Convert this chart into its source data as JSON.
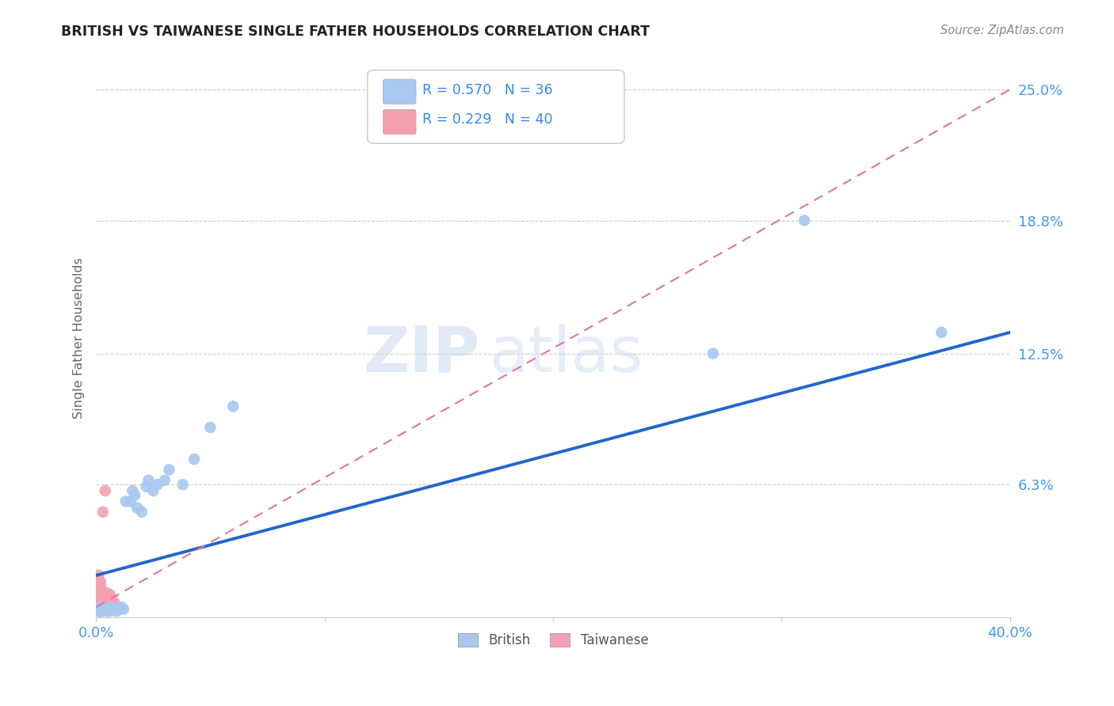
{
  "title": "BRITISH VS TAIWANESE SINGLE FATHER HOUSEHOLDS CORRELATION CHART",
  "source": "Source: ZipAtlas.com",
  "ylabel": "Single Father Households",
  "xlim": [
    0.0,
    0.4
  ],
  "ylim": [
    0.0,
    0.265
  ],
  "ytick_positions": [
    0.063,
    0.125,
    0.188,
    0.25
  ],
  "ytick_labels": [
    "6.3%",
    "12.5%",
    "18.8%",
    "25.0%"
  ],
  "british_color": "#a8c8f0",
  "taiwanese_color": "#f5a0b0",
  "british_line_color": "#2266cc",
  "taiwanese_line_color": "#dd7799",
  "watermark_zip": "ZIP",
  "watermark_atlas": "atlas",
  "legend_r_british": "R = 0.570",
  "legend_n_british": "N = 36",
  "legend_r_taiwanese": "R = 0.229",
  "legend_n_taiwanese": "N = 40",
  "british_x": [
    0.001,
    0.001,
    0.002,
    0.002,
    0.003,
    0.003,
    0.004,
    0.005,
    0.005,
    0.006,
    0.006,
    0.007,
    0.008,
    0.009,
    0.01,
    0.011,
    0.012,
    0.013,
    0.015,
    0.016,
    0.017,
    0.018,
    0.02,
    0.022,
    0.023,
    0.025,
    0.027,
    0.03,
    0.032,
    0.038,
    0.043,
    0.05,
    0.06,
    0.27,
    0.31,
    0.37
  ],
  "british_y": [
    0.003,
    0.004,
    0.003,
    0.005,
    0.003,
    0.004,
    0.004,
    0.003,
    0.004,
    0.003,
    0.005,
    0.004,
    0.004,
    0.003,
    0.004,
    0.005,
    0.004,
    0.055,
    0.055,
    0.06,
    0.058,
    0.052,
    0.05,
    0.062,
    0.065,
    0.06,
    0.063,
    0.065,
    0.07,
    0.063,
    0.075,
    0.09,
    0.1,
    0.125,
    0.188,
    0.135
  ],
  "taiwanese_x": [
    0.001,
    0.001,
    0.001,
    0.001,
    0.001,
    0.001,
    0.001,
    0.001,
    0.001,
    0.001,
    0.001,
    0.001,
    0.002,
    0.002,
    0.002,
    0.002,
    0.002,
    0.002,
    0.002,
    0.002,
    0.003,
    0.003,
    0.003,
    0.003,
    0.003,
    0.003,
    0.004,
    0.004,
    0.004,
    0.004,
    0.004,
    0.005,
    0.005,
    0.005,
    0.006,
    0.006,
    0.006,
    0.007,
    0.007,
    0.008
  ],
  "taiwanese_y": [
    0.003,
    0.004,
    0.005,
    0.006,
    0.007,
    0.008,
    0.01,
    0.012,
    0.014,
    0.016,
    0.018,
    0.02,
    0.003,
    0.005,
    0.007,
    0.009,
    0.011,
    0.013,
    0.015,
    0.017,
    0.004,
    0.006,
    0.008,
    0.01,
    0.012,
    0.05,
    0.004,
    0.006,
    0.008,
    0.012,
    0.06,
    0.005,
    0.008,
    0.011,
    0.005,
    0.008,
    0.011,
    0.006,
    0.009,
    0.007
  ],
  "blue_line_x0": 0.0,
  "blue_line_y0": 0.02,
  "blue_line_x1": 0.4,
  "blue_line_y1": 0.135,
  "pink_line_x0": 0.0,
  "pink_line_y0": 0.005,
  "pink_line_x1": 0.4,
  "pink_line_y1": 0.25
}
